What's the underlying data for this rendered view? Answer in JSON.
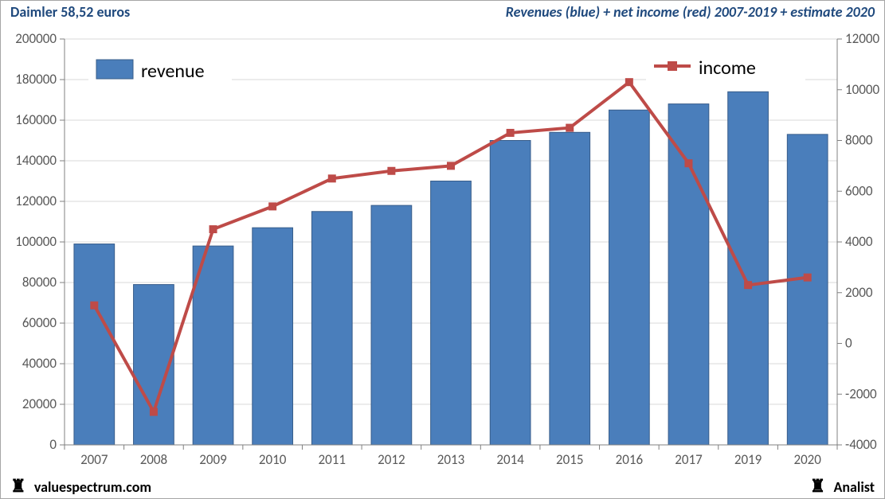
{
  "header": {
    "left": "Daimler 58,52 euros",
    "right": "Revenues (blue) + net income (red) 2007-2019 + estimate 2020",
    "color": "#1f497d",
    "fontsize": 18
  },
  "footer": {
    "left": "valuespectrum.com",
    "right": "Analist",
    "icon": "♜",
    "color": "#000000",
    "fontsize": 18
  },
  "chart": {
    "categories": [
      "2007",
      "2008",
      "2009",
      "2010",
      "2011",
      "2012",
      "2013",
      "2014",
      "2015",
      "2016",
      "2017",
      "2019",
      "2020"
    ],
    "revenue": {
      "label": "revenue",
      "values": [
        99000,
        79000,
        98000,
        107000,
        115000,
        118000,
        130000,
        150000,
        154000,
        165000,
        168000,
        174000,
        153000
      ],
      "color": "#4a7ebb",
      "border_color": "#385d8a"
    },
    "income": {
      "label": "income",
      "values": [
        1500,
        -2700,
        4500,
        5400,
        6500,
        6800,
        7000,
        8300,
        8500,
        10300,
        7100,
        2300,
        2600
      ],
      "line_color": "#be4b48",
      "marker_color": "#be4b48",
      "line_width": 4,
      "marker_size": 9
    },
    "axis_left": {
      "min": 0,
      "max": 200000,
      "step": 20000,
      "label_color": "#595959",
      "tick_fontsize": 17
    },
    "axis_right": {
      "min": -4000,
      "max": 12000,
      "step": 2000,
      "label_color": "#595959",
      "tick_fontsize": 17
    },
    "axis_x": {
      "label_color": "#595959",
      "tick_fontsize": 17
    },
    "plot_background": "#ffffff",
    "gridline_color": "#d9d9d9",
    "plot_border_color": "#bfbfbf",
    "legend": {
      "fontsize": 24,
      "text_color": "#000000",
      "box_border": "#808080"
    }
  }
}
